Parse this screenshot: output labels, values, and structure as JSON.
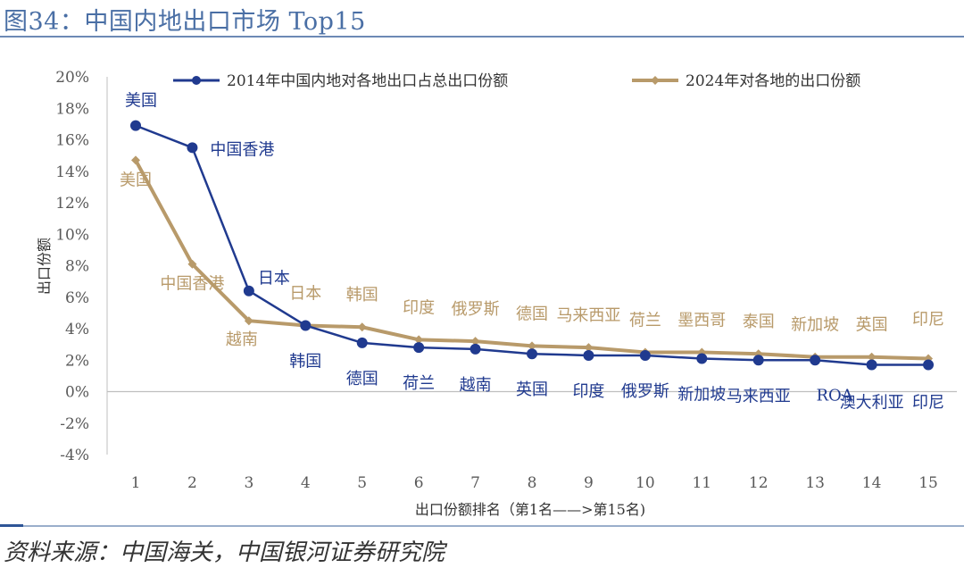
{
  "header": {
    "title": "图34：中国内地出口市场 Top15"
  },
  "source_note": "资料来源：中国海关，中国银河证券研究院",
  "colors": {
    "series_2014": "#203a8f",
    "series_2024": "#b89a6a",
    "axis": "#bfbfbf",
    "tick_text": "#595959"
  },
  "chart_data": {
    "type": "line",
    "title": "",
    "xlabel": "出口份额排名（第1名——>第15名)",
    "ylabel": "出口份额",
    "ylim": [
      -4,
      20
    ],
    "y_step": 2,
    "y_format": "percent",
    "x": [
      1,
      2,
      3,
      4,
      5,
      6,
      7,
      8,
      9,
      10,
      11,
      12,
      13,
      14,
      15
    ],
    "grid": false,
    "legend_position": "top",
    "series": [
      {
        "name": "2014年中国内地对各地出口占总出口份额",
        "marker": "circle",
        "values": [
          16.9,
          15.5,
          6.4,
          4.2,
          3.1,
          2.8,
          2.7,
          2.4,
          2.3,
          2.3,
          2.1,
          2.0,
          2.0,
          1.7,
          1.7
        ],
        "labels": [
          "美国",
          "中国香港",
          "日本",
          "韩国",
          "德国",
          "荷兰",
          "越南",
          "英国",
          "印度",
          "俄罗斯",
          "新加坡",
          "马来西亚",
          "ROA",
          "澳大利亚",
          "印尼"
        ]
      },
      {
        "name": "2024年对各地的出口份额",
        "marker": "diamond",
        "values": [
          14.7,
          8.1,
          4.5,
          4.2,
          4.1,
          3.3,
          3.2,
          2.9,
          2.8,
          2.5,
          2.5,
          2.4,
          2.2,
          2.2,
          2.1
        ],
        "labels": [
          "美国",
          "中国香港",
          "越南",
          "日本",
          "韩国",
          "印度",
          "俄罗斯",
          "德国",
          "马来西亚",
          "荷兰",
          "墨西哥",
          "泰国",
          "新加坡",
          "英国",
          "印尼"
        ]
      }
    ]
  }
}
